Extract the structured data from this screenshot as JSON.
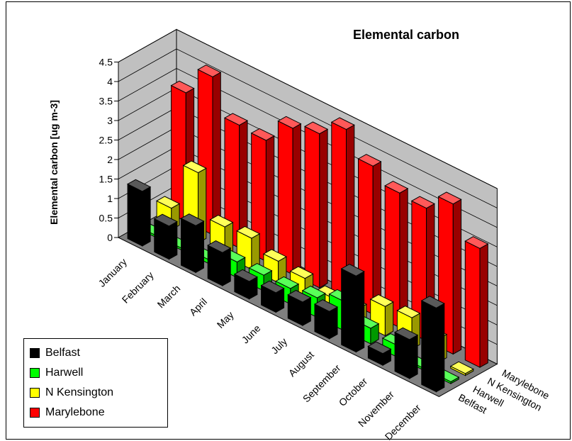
{
  "chart_data": {
    "type": "bar",
    "subtype": "3d-bar",
    "title": "Elemental carbon",
    "ylabel": "Elemental carbon [ug m-3]",
    "xlabel": "",
    "categories": [
      "January",
      "February",
      "March",
      "April",
      "May",
      "June",
      "July",
      "August",
      "September",
      "October",
      "November",
      "December"
    ],
    "yticks": [
      "0",
      "0.5",
      "1",
      "1.5",
      "2",
      "2.5",
      "3",
      "3.5",
      "4",
      "4.5"
    ],
    "ylim": [
      0,
      4.5
    ],
    "grid": true,
    "legend_position": "bottom-left",
    "series": [
      {
        "name": "Belfast",
        "color": "#000000",
        "values": [
          1.4,
          0.85,
          1.2,
          0.85,
          0.45,
          0.5,
          0.6,
          0.7,
          1.95,
          0.3,
          1.0,
          2.15
        ]
      },
      {
        "name": "Harwell",
        "color": "#00ff00",
        "values": [
          0.05,
          0.05,
          0.1,
          0.4,
          0.4,
          0.4,
          0.5,
          0.75,
          0.4,
          0.3,
          0.05,
          0.05
        ]
      },
      {
        "name": "N Kensington",
        "color": "#ffff00",
        "values": [
          0.55,
          1.8,
          0.75,
          0.8,
          0.55,
          0.45,
          0.3,
          0.35,
          0.75,
          0.8,
          0.6,
          0.05
        ]
      },
      {
        "name": "Marylebone",
        "color": "#ff0000",
        "values": [
          3.3,
          4.05,
          3.15,
          3.1,
          3.75,
          3.95,
          4.4,
          3.8,
          3.45,
          3.4,
          3.85,
          3.05
        ]
      }
    ]
  }
}
